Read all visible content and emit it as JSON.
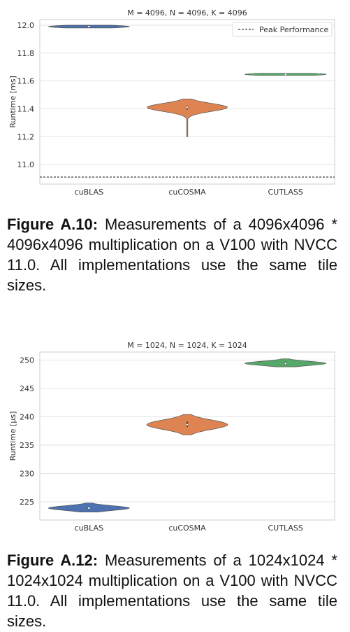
{
  "figures": [
    {
      "caption_label": "Figure A.10:",
      "caption_text": "Measurements of a 4096x4096 * 4096x4096 multiplication on a V100 with NVCC 11.0. All implementations use the same tile sizes."
    },
    {
      "caption_label": "Figure A.12:",
      "caption_text": "Measurements of a 1024x1024 * 1024x1024 multiplication on a V100 with NVCC 11.0. All implementations use the same tile sizes."
    }
  ],
  "chart_data": [
    {
      "type": "violin",
      "title": "M = 4096, N = 4096, K = 4096",
      "xlabel": "",
      "ylabel": "Runtime [ms]",
      "categories": [
        "cuBLAS",
        "cuCOSMA",
        "CUTLASS"
      ],
      "ylim": [
        10.86,
        12.04
      ],
      "yticks": [
        11.0,
        11.2,
        11.4,
        11.6,
        11.8,
        12.0
      ],
      "ytick_labels": [
        "11.0",
        "11.2",
        "11.4",
        "11.6",
        "11.8",
        "12.0"
      ],
      "grid": true,
      "legend": {
        "position": "top-right",
        "entries": [
          "Peak Performance"
        ]
      },
      "reference_line": {
        "name": "Peak Performance",
        "value": 10.91,
        "style": "dashed"
      },
      "series": [
        {
          "category": "cuBLAS",
          "color": "#4c72b0",
          "min": 11.98,
          "max": 12.0,
          "median": 11.99,
          "q1": 11.988,
          "q3": 11.992
        },
        {
          "category": "cuCOSMA",
          "color": "#dd8452",
          "min": 11.2,
          "max": 11.47,
          "median": 11.41,
          "q1": 11.395,
          "q3": 11.42
        },
        {
          "category": "CUTLASS",
          "color": "#55a868",
          "min": 11.64,
          "max": 11.655,
          "median": 11.647,
          "q1": 11.645,
          "q3": 11.65
        }
      ]
    },
    {
      "type": "violin",
      "title": "M = 1024, N = 1024, K = 1024",
      "xlabel": "",
      "ylabel": "Runtime [μs]",
      "categories": [
        "cuBLAS",
        "cuCOSMA",
        "CUTLASS"
      ],
      "ylim": [
        221.8,
        251.4
      ],
      "yticks": [
        225,
        230,
        235,
        240,
        245,
        250
      ],
      "ytick_labels": [
        "225",
        "230",
        "235",
        "240",
        "245",
        "250"
      ],
      "grid": true,
      "legend": null,
      "reference_line": null,
      "series": [
        {
          "category": "cuBLAS",
          "color": "#4c72b0",
          "min": 223.2,
          "max": 224.8,
          "median": 223.9,
          "q1": 223.7,
          "q3": 224.1
        },
        {
          "category": "cuCOSMA",
          "color": "#dd8452",
          "min": 236.8,
          "max": 240.4,
          "median": 238.6,
          "q1": 238.2,
          "q3": 239.1
        },
        {
          "category": "CUTLASS",
          "color": "#55a868",
          "min": 248.8,
          "max": 250.2,
          "median": 249.4,
          "q1": 249.2,
          "q3": 249.7
        }
      ]
    }
  ]
}
